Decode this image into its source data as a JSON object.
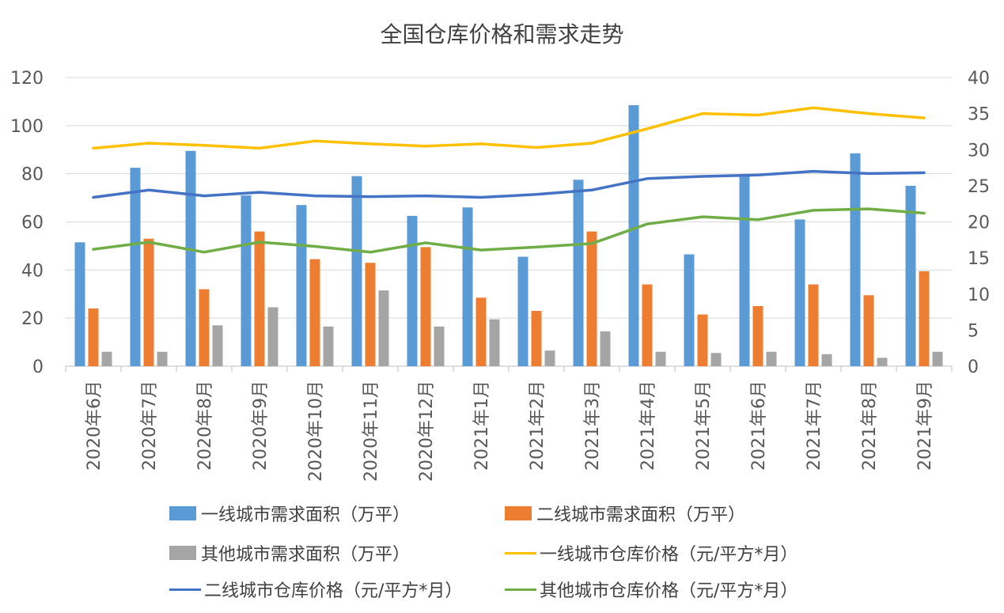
{
  "chart_data": {
    "type": "bar+line",
    "title": "全国仓库价格和需求走势",
    "categories": [
      "2020年6月",
      "2020年7月",
      "2020年8月",
      "2020年9月",
      "2020年10月",
      "2020年11月",
      "2020年12月",
      "2021年1月",
      "2021年2月",
      "2021年3月",
      "2021年4月",
      "2021年5月",
      "2021年6月",
      "2021年7月",
      "2021年8月",
      "2021年9月"
    ],
    "y_left": {
      "min": 0,
      "max": 120,
      "ticks": [
        0,
        20,
        40,
        60,
        80,
        100,
        120
      ]
    },
    "y_right": {
      "min": 0,
      "max": 40,
      "ticks": [
        0,
        5,
        10,
        15,
        20,
        25,
        30,
        35,
        40
      ]
    },
    "grid": true,
    "legend_position": "bottom",
    "bar_series": [
      {
        "name": "一线城市需求面积（万平）",
        "color": "#5B9BD5",
        "axis": "left",
        "values": [
          51.5,
          82.5,
          89.5,
          71,
          67,
          79,
          62.5,
          66,
          45.5,
          77.5,
          108.5,
          46.5,
          79.5,
          61,
          88.5,
          75
        ]
      },
      {
        "name": "二线城市需求面积（万平）",
        "color": "#ED7D31",
        "axis": "left",
        "values": [
          24,
          53,
          32,
          56,
          44.5,
          43,
          49.5,
          28.5,
          23,
          56,
          34,
          21.5,
          25,
          34,
          29.5,
          39.5
        ]
      },
      {
        "name": "其他城市需求面积（万平）",
        "color": "#A5A5A5",
        "axis": "left",
        "values": [
          6,
          6,
          17,
          24.5,
          16.5,
          31.5,
          16.5,
          19.5,
          6.5,
          14.5,
          6,
          5.5,
          6,
          5,
          3.5,
          6
        ]
      }
    ],
    "line_series": [
      {
        "name": "一线城市仓库价格（元/平方*月）",
        "color": "#FFC000",
        "axis": "right",
        "values": [
          30.2,
          30.9,
          30.6,
          30.2,
          31.2,
          30.8,
          30.5,
          30.8,
          30.3,
          30.9,
          32.9,
          35,
          34.8,
          35.8,
          35,
          34.4
        ]
      },
      {
        "name": "二线城市仓库价格（元/平方*月）",
        "color": "#4472C4",
        "axis": "right",
        "values": [
          23.4,
          24.4,
          23.6,
          24.1,
          23.6,
          23.5,
          23.6,
          23.4,
          23.8,
          24.4,
          26,
          26.3,
          26.5,
          27,
          26.7,
          26.8
        ]
      },
      {
        "name": "其他城市仓库价格（元/平方*月）",
        "color": "#70AD47",
        "axis": "right",
        "values": [
          16.2,
          17.2,
          15.8,
          17.2,
          16.6,
          15.8,
          17.1,
          16.1,
          16.5,
          17,
          19.7,
          20.7,
          20.3,
          21.6,
          21.8,
          21.2
        ]
      }
    ]
  }
}
